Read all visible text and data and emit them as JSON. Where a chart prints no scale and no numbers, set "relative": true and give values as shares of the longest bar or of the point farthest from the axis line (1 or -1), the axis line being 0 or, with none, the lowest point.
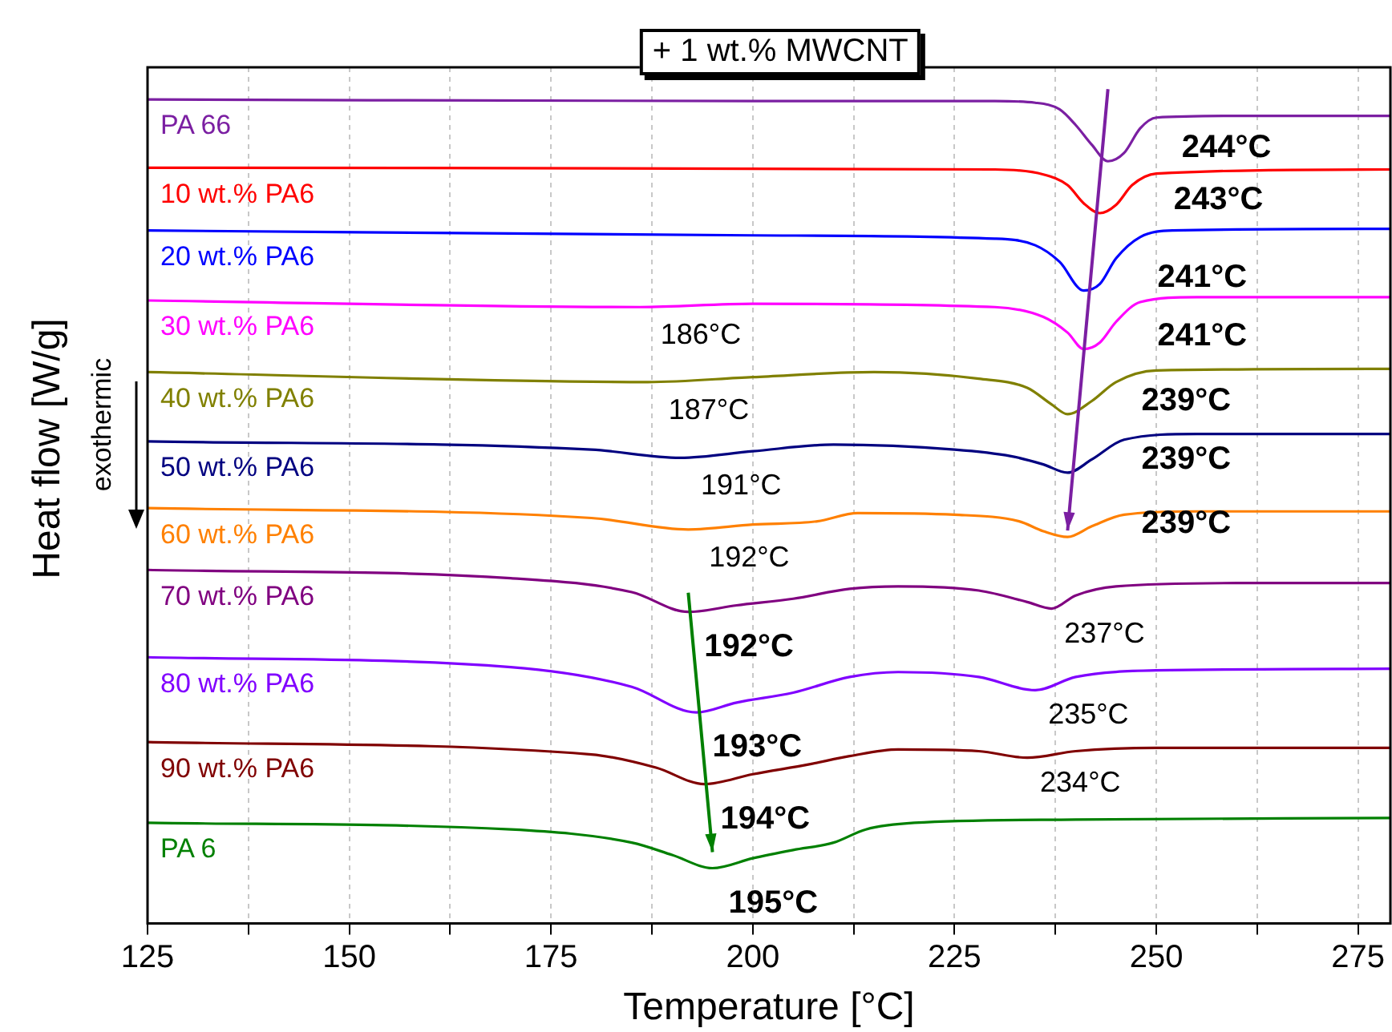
{
  "chart_data": {
    "type": "line",
    "title": "+ 1 wt.% MWCNT",
    "xlabel": "Temperature [°C]",
    "ylabel": "Heat flow [W/g]",
    "relative": true,
    "grid": "x",
    "legend": false,
    "marker": "none",
    "line_style": "solid",
    "xlim": [
      125,
      279
    ],
    "xticks": [
      125,
      {
        "value": 137.5,
        "label": null
      },
      150,
      {
        "value": 162.5,
        "label": null
      },
      175,
      {
        "value": 187.5,
        "label": null
      },
      200,
      {
        "value": 212.5,
        "label": null
      },
      225,
      {
        "value": 237.5,
        "label": null
      },
      250,
      {
        "value": 262.5,
        "label": null
      },
      275
    ],
    "series": [
      {
        "name": "PA 66",
        "color": "#7b1fa2",
        "x": [
          125,
          200,
          230,
          235,
          238,
          240,
          242,
          244,
          246,
          248,
          250,
          260,
          279
        ],
        "values": [
          1.0,
          0.998,
          0.998,
          0.996,
          0.988,
          0.969,
          0.945,
          0.925,
          0.935,
          0.965,
          0.978,
          0.98,
          0.98
        ]
      },
      {
        "name": "10 wt.% PA6",
        "color": "#ff0000",
        "x": [
          125,
          230,
          236,
          239,
          241,
          243,
          245,
          247,
          250,
          279
        ],
        "values": [
          0.917,
          0.915,
          0.909,
          0.896,
          0.874,
          0.862,
          0.872,
          0.896,
          0.91,
          0.915
        ]
      },
      {
        "name": "20 wt.% PA6",
        "color": "#0000ff",
        "x": [
          125,
          200,
          230,
          235,
          238,
          241,
          243,
          245,
          248,
          252,
          279
        ],
        "values": [
          0.841,
          0.835,
          0.831,
          0.823,
          0.803,
          0.768,
          0.776,
          0.807,
          0.833,
          0.841,
          0.843
        ]
      },
      {
        "name": "30 wt.% PA6",
        "color": "#ff00ff",
        "x": [
          125,
          186,
          200,
          230,
          236,
          239,
          241,
          243,
          245,
          248,
          255,
          279
        ],
        "values": [
          0.756,
          0.748,
          0.752,
          0.748,
          0.736,
          0.717,
          0.697,
          0.705,
          0.73,
          0.754,
          0.76,
          0.76
        ]
      },
      {
        "name": "40 wt.% PA6",
        "color": "#808000",
        "x": [
          125,
          187,
          200,
          215,
          228,
          234,
          237,
          239,
          242,
          245,
          250,
          279
        ],
        "values": [
          0.669,
          0.657,
          0.663,
          0.669,
          0.661,
          0.65,
          0.63,
          0.618,
          0.634,
          0.657,
          0.671,
          0.673
        ]
      },
      {
        "name": "50 wt.% PA6",
        "color": "#000080",
        "x": [
          125,
          180,
          191,
          200,
          210,
          225,
          232,
          236,
          239,
          242,
          246,
          255,
          279
        ],
        "values": [
          0.585,
          0.575,
          0.565,
          0.573,
          0.581,
          0.575,
          0.567,
          0.557,
          0.547,
          0.563,
          0.587,
          0.594,
          0.594
        ]
      },
      {
        "name": "60 wt.% PA6",
        "color": "#ff8000",
        "x": [
          125,
          180,
          192,
          200,
          208,
          213,
          225,
          233,
          236,
          239,
          242,
          246,
          255,
          279
        ],
        "values": [
          0.504,
          0.492,
          0.478,
          0.484,
          0.488,
          0.498,
          0.496,
          0.488,
          0.476,
          0.469,
          0.482,
          0.496,
          0.5,
          0.5
        ]
      },
      {
        "name": "70 wt.% PA6",
        "color": "#800080",
        "x": [
          125,
          170,
          185,
          192,
          198,
          205,
          212,
          218,
          228,
          234,
          237,
          240,
          245,
          260,
          279
        ],
        "values": [
          0.429,
          0.419,
          0.402,
          0.378,
          0.386,
          0.394,
          0.406,
          0.409,
          0.404,
          0.39,
          0.382,
          0.398,
          0.409,
          0.413,
          0.413
        ]
      },
      {
        "name": "80 wt.% PA6",
        "color": "#8000ff",
        "x": [
          125,
          170,
          185,
          193,
          198,
          205,
          212,
          218,
          228,
          235,
          240,
          250,
          279
        ],
        "values": [
          0.323,
          0.311,
          0.287,
          0.256,
          0.268,
          0.28,
          0.299,
          0.305,
          0.299,
          0.283,
          0.299,
          0.307,
          0.309
        ]
      },
      {
        "name": "90 wt.% PA6",
        "color": "#800000",
        "x": [
          125,
          180,
          188,
          194,
          200,
          207,
          212,
          218,
          228,
          234,
          240,
          250,
          279
        ],
        "values": [
          0.22,
          0.205,
          0.189,
          0.169,
          0.181,
          0.193,
          0.203,
          0.211,
          0.209,
          0.201,
          0.209,
          0.213,
          0.213
        ]
      },
      {
        "name": "PA 6",
        "color": "#008000",
        "x": [
          125,
          170,
          185,
          190,
          195,
          200,
          205,
          210,
          214,
          220,
          240,
          279
        ],
        "values": [
          0.122,
          0.114,
          0.098,
          0.083,
          0.067,
          0.079,
          0.089,
          0.098,
          0.114,
          0.122,
          0.126,
          0.128
        ]
      }
    ],
    "annotations": [
      {
        "text": "244°C",
        "x": 244,
        "y": 0.925
      },
      {
        "text": "243°C",
        "x": 243,
        "y": 0.862
      },
      {
        "text": "241°C",
        "x": 241,
        "y": 0.768
      },
      {
        "text": "241°C",
        "x": 241,
        "y": 0.697
      },
      {
        "text": "239°C",
        "x": 239,
        "y": 0.618
      },
      {
        "text": "239°C",
        "x": 239,
        "y": 0.547
      },
      {
        "text": "239°C",
        "x": 239,
        "y": 0.469
      },
      {
        "text": "192°C",
        "x": 192,
        "y": 0.378
      },
      {
        "text": "193°C",
        "x": 193,
        "y": 0.256
      },
      {
        "text": "194°C",
        "x": 194,
        "y": 0.169
      },
      {
        "text": "195°C",
        "x": 195,
        "y": 0.067
      },
      {
        "text": "186°C",
        "x": 186,
        "y": 0.748
      },
      {
        "text": "187°C",
        "x": 187,
        "y": 0.657
      },
      {
        "text": "191°C",
        "x": 191,
        "y": 0.565
      },
      {
        "text": "192°C",
        "x": 192,
        "y": 0.478
      },
      {
        "text": "237°C",
        "x": 237,
        "y": 0.382
      },
      {
        "text": "235°C",
        "x": 235,
        "y": 0.283
      },
      {
        "text": "234°C",
        "x": 234,
        "y": 0.201
      },
      "exothermic"
    ]
  }
}
